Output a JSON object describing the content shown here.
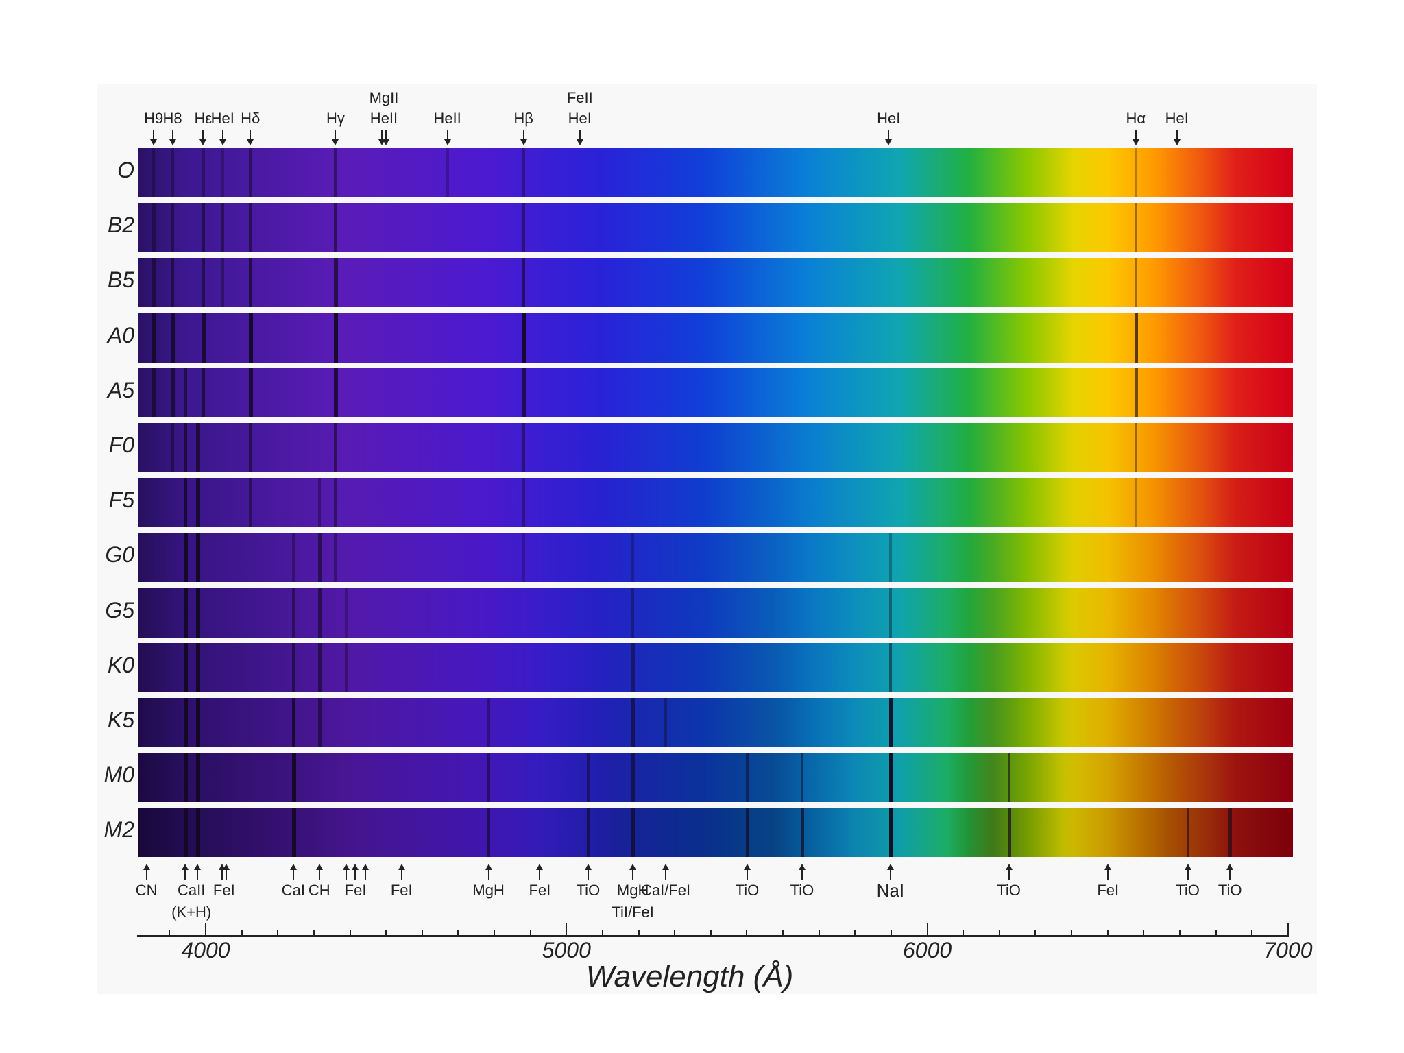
{
  "axis": {
    "title": "Wavelength (Å)",
    "range": [
      3814,
      7015
    ],
    "major_ticks": [
      4000,
      5000,
      6000,
      7000
    ],
    "minor_step": 100
  },
  "rows": [
    {
      "label": "O",
      "lines": [
        [
          3856,
          0.4
        ],
        [
          3908,
          0.4
        ],
        [
          3993,
          0.4
        ],
        [
          4047,
          0.3
        ],
        [
          4124,
          0.5
        ],
        [
          4360,
          0.5
        ],
        [
          4670,
          0.3
        ],
        [
          4881,
          0.4
        ],
        [
          6578,
          0.3
        ]
      ],
      "late": 0
    },
    {
      "label": "B2",
      "lines": [
        [
          3856,
          0.5
        ],
        [
          3908,
          0.5
        ],
        [
          3993,
          0.6
        ],
        [
          4047,
          0.5
        ],
        [
          4124,
          0.6
        ],
        [
          4360,
          0.6
        ],
        [
          4881,
          0.5
        ],
        [
          6578,
          0.4
        ]
      ],
      "late": 0
    },
    {
      "label": "B5",
      "lines": [
        [
          3856,
          0.6
        ],
        [
          3908,
          0.6
        ],
        [
          3993,
          0.6
        ],
        [
          4047,
          0.4
        ],
        [
          4124,
          0.7
        ],
        [
          4360,
          0.7
        ],
        [
          4881,
          0.6
        ],
        [
          6578,
          0.4
        ]
      ],
      "late": 0
    },
    {
      "label": "A0",
      "lines": [
        [
          3856,
          0.8
        ],
        [
          3908,
          0.8
        ],
        [
          3993,
          0.8
        ],
        [
          4124,
          0.9
        ],
        [
          4360,
          0.9
        ],
        [
          4881,
          0.9
        ],
        [
          6578,
          0.7
        ]
      ],
      "late": 0
    },
    {
      "label": "A5",
      "lines": [
        [
          3856,
          0.7
        ],
        [
          3908,
          0.7
        ],
        [
          3943,
          0.6
        ],
        [
          3993,
          0.7
        ],
        [
          4124,
          0.8
        ],
        [
          4360,
          0.8
        ],
        [
          4881,
          0.7
        ],
        [
          6578,
          0.6
        ]
      ],
      "late": 0
    },
    {
      "label": "F0",
      "lines": [
        [
          3908,
          0.5
        ],
        [
          3943,
          0.7
        ],
        [
          3978,
          0.7
        ],
        [
          4124,
          0.6
        ],
        [
          4360,
          0.6
        ],
        [
          4881,
          0.5
        ],
        [
          6578,
          0.4
        ]
      ],
      "late": 0.1
    },
    {
      "label": "F5",
      "lines": [
        [
          3943,
          0.8
        ],
        [
          3978,
          0.8
        ],
        [
          4124,
          0.5
        ],
        [
          4315,
          0.4
        ],
        [
          4360,
          0.5
        ],
        [
          4881,
          0.4
        ],
        [
          6578,
          0.3
        ]
      ],
      "late": 0.15
    },
    {
      "label": "G0",
      "lines": [
        [
          3943,
          0.9
        ],
        [
          3978,
          0.9
        ],
        [
          4243,
          0.4
        ],
        [
          4315,
          0.6
        ],
        [
          4360,
          0.4
        ],
        [
          4881,
          0.3
        ],
        [
          5184,
          0.3
        ],
        [
          5898,
          0.3
        ]
      ],
      "late": 0.25
    },
    {
      "label": "G5",
      "lines": [
        [
          3943,
          0.9
        ],
        [
          3978,
          0.9
        ],
        [
          4243,
          0.5
        ],
        [
          4315,
          0.6
        ],
        [
          4390,
          0.3
        ],
        [
          5184,
          0.4
        ],
        [
          5898,
          0.4
        ]
      ],
      "late": 0.35
    },
    {
      "label": "K0",
      "lines": [
        [
          3943,
          0.9
        ],
        [
          3978,
          0.9
        ],
        [
          4243,
          0.6
        ],
        [
          4315,
          0.6
        ],
        [
          4390,
          0.4
        ],
        [
          5184,
          0.5
        ],
        [
          5898,
          0.5
        ]
      ],
      "late": 0.45
    },
    {
      "label": "K5",
      "lines": [
        [
          3943,
          0.9
        ],
        [
          3978,
          0.9
        ],
        [
          4243,
          0.8
        ],
        [
          4315,
          0.6
        ],
        [
          4784,
          0.4
        ],
        [
          5184,
          0.6
        ],
        [
          5275,
          0.4
        ],
        [
          5898,
          0.9
        ]
      ],
      "late": 0.6
    },
    {
      "label": "M0",
      "lines": [
        [
          3943,
          0.9
        ],
        [
          3978,
          0.9
        ],
        [
          4243,
          0.9
        ],
        [
          4784,
          0.5
        ],
        [
          5060,
          0.5
        ],
        [
          5184,
          0.6
        ],
        [
          5501,
          0.5
        ],
        [
          5653,
          0.5
        ],
        [
          5898,
          0.95
        ],
        [
          6226,
          0.6
        ]
      ],
      "late": 0.8
    },
    {
      "label": "M2",
      "lines": [
        [
          3943,
          0.9
        ],
        [
          3978,
          0.9
        ],
        [
          4243,
          0.9
        ],
        [
          4784,
          0.6
        ],
        [
          5060,
          0.6
        ],
        [
          5184,
          0.7
        ],
        [
          5501,
          0.7
        ],
        [
          5653,
          0.7
        ],
        [
          5898,
          0.95
        ],
        [
          6226,
          0.7
        ],
        [
          6722,
          0.6
        ],
        [
          6839,
          0.6
        ]
      ],
      "late": 1
    }
  ],
  "top_markers": [
    {
      "label": "H9",
      "wl": [
        3856
      ]
    },
    {
      "label": "H8",
      "wl": [
        3908
      ]
    },
    {
      "label": "Hε",
      "wl": [
        3993
      ]
    },
    {
      "label": "HeI",
      "wl": [
        4047
      ]
    },
    {
      "label": "Hδ",
      "wl": [
        4124
      ]
    },
    {
      "label": "Hγ",
      "wl": [
        4360
      ]
    },
    {
      "label": "HeII",
      "label2": "MgII",
      "wl": [
        4489,
        4499
      ]
    },
    {
      "label": "HeII",
      "wl": [
        4670
      ]
    },
    {
      "label": "Hβ",
      "wl": [
        4881
      ]
    },
    {
      "label": "HeI",
      "label2": "FeII",
      "wl": [
        5037
      ]
    },
    {
      "label": "HeI",
      "wl": [
        5893
      ]
    },
    {
      "label": "Hα",
      "wl": [
        6578
      ]
    },
    {
      "label": "HeI",
      "wl": [
        6692
      ]
    }
  ],
  "bottom_markers": [
    {
      "label": "CN",
      "wl": [
        3836
      ]
    },
    {
      "label": "CaII",
      "label2": "(K+H)",
      "wl": [
        3943,
        3978
      ]
    },
    {
      "label": "FeI",
      "wl": [
        4045,
        4057
      ]
    },
    {
      "label": "CaI",
      "wl": [
        4243
      ]
    },
    {
      "label": "CH",
      "wl": [
        4315
      ]
    },
    {
      "label": "FeI",
      "wl": [
        4390,
        4414,
        4442
      ]
    },
    {
      "label": "FeI",
      "wl": [
        4543
      ]
    },
    {
      "label": "MgH",
      "wl": [
        4784
      ]
    },
    {
      "label": "FeI",
      "wl": [
        4926
      ]
    },
    {
      "label": "TiO",
      "wl": [
        5060
      ]
    },
    {
      "label": "MgH",
      "label2": "TiI/FeI",
      "wl": [
        5184
      ]
    },
    {
      "label": "CaI/FeI",
      "wl": [
        5275
      ]
    },
    {
      "label": "TiO",
      "wl": [
        5501
      ]
    },
    {
      "label": "TiO",
      "wl": [
        5653
      ]
    },
    {
      "label": "NaI",
      "wl": [
        5898
      ]
    },
    {
      "label": "TiO",
      "wl": [
        6226
      ]
    },
    {
      "label": "FeI",
      "wl": [
        6501
      ]
    },
    {
      "label": "TiO",
      "wl": [
        6722
      ]
    },
    {
      "label": "TiO",
      "wl": [
        6839
      ]
    }
  ]
}
